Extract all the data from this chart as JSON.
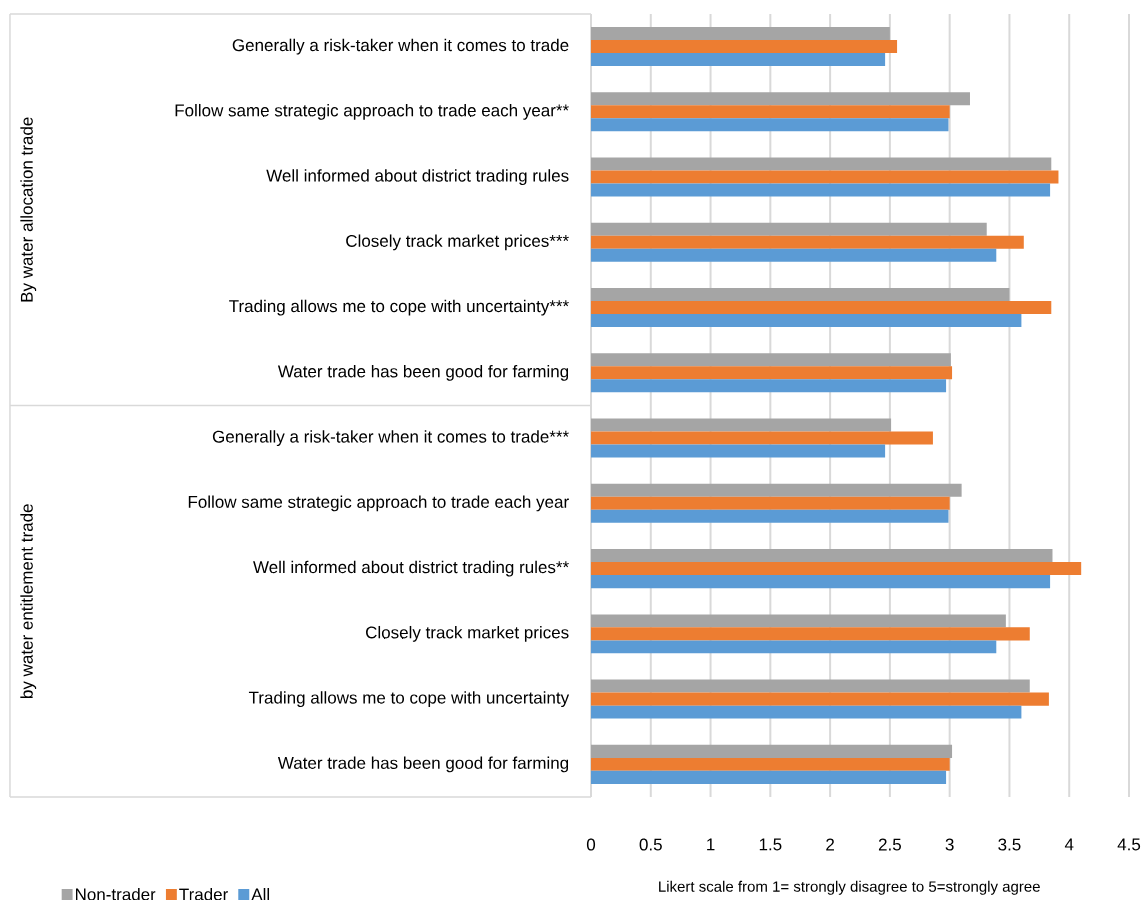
{
  "chart_data": {
    "type": "bar",
    "orientation": "horizontal",
    "categories": [
      "Generally a risk-taker when it comes to trade",
      "Follow same strategic approach to trade each year**",
      "Well informed about district trading rules",
      "Closely track market prices***",
      "Trading allows me to cope with uncertainty***",
      "Water trade has been good for farming",
      "Generally a risk-taker when it comes to trade***",
      "Follow same strategic approach to trade each year",
      "Well informed about district trading rules**",
      "Closely track market prices",
      "Trading allows me to cope with uncertainty",
      "Water trade has been good for farming"
    ],
    "series": [
      {
        "name": "Non-trader",
        "color": "#a5a5a5",
        "values": [
          2.5,
          3.17,
          3.85,
          3.31,
          3.5,
          3.01,
          2.51,
          3.1,
          3.86,
          3.47,
          3.67,
          3.02
        ]
      },
      {
        "name": "Trader",
        "color": "#ed7d31",
        "values": [
          2.56,
          3.0,
          3.91,
          3.62,
          3.85,
          3.02,
          2.86,
          3.0,
          4.1,
          3.67,
          3.83,
          3.0
        ]
      },
      {
        "name": "All",
        "color": "#5b9bd5",
        "values": [
          2.46,
          2.99,
          3.84,
          3.39,
          3.6,
          2.97,
          2.46,
          2.99,
          3.84,
          3.39,
          3.6,
          2.97
        ]
      }
    ],
    "xlim": [
      0,
      4.5
    ],
    "xticks": [
      0,
      0.5,
      1,
      1.5,
      2,
      2.5,
      3,
      3.5,
      4,
      4.5
    ],
    "xlabel": "Likert scale from 1= strongly disagree to 5=strongly agree",
    "annotations": [
      "By water allocation trade",
      "by water entitlement trade"
    ],
    "grid": "x",
    "legend": "bottom left"
  }
}
